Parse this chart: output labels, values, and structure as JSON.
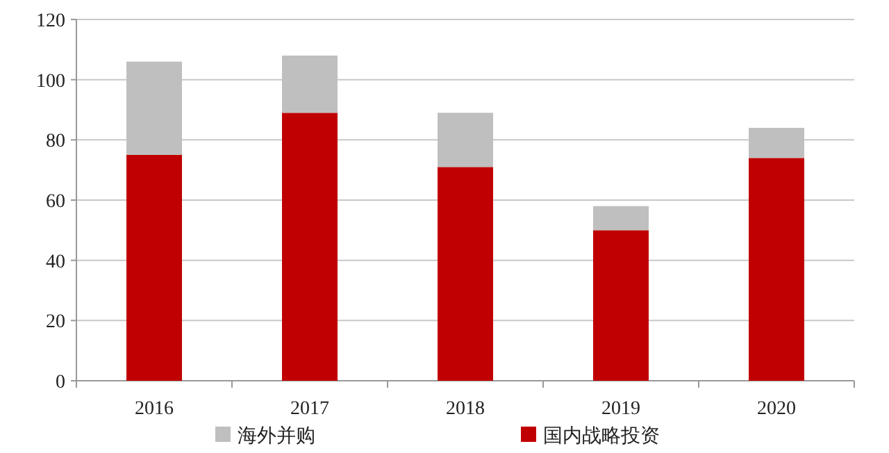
{
  "chart_data": {
    "type": "bar",
    "stacked": true,
    "categories": [
      "2016",
      "2017",
      "2018",
      "2019",
      "2020"
    ],
    "series": [
      {
        "name": "国内战略投资",
        "color": "#c00000",
        "values": [
          75,
          89,
          71,
          50,
          74
        ]
      },
      {
        "name": "海外并购",
        "color": "#bfbfbf",
        "values": [
          31,
          19,
          18,
          8,
          10
        ]
      }
    ],
    "ylim": [
      0,
      120
    ],
    "yticks": [
      0,
      20,
      40,
      60,
      80,
      100,
      120
    ],
    "grid": "y",
    "legend": "bottom"
  }
}
